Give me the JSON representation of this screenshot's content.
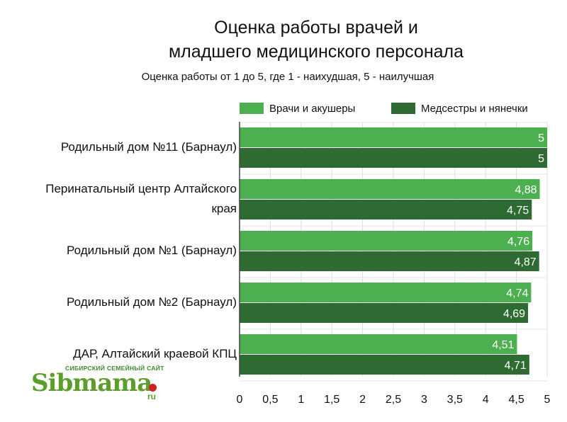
{
  "chart_data": {
    "type": "bar",
    "orientation": "horizontal",
    "title_lines": [
      "Оценка работы врачей и",
      "младшего медицинского персонала"
    ],
    "subtitle": "Оценка работы от 1 до 5, где 1 - наихудшая, 5 - наилучшая",
    "categories": [
      "Родильный дом №11 (Барнаул)",
      "Перинатальный центр Алтайского края",
      "Родильный дом №1 (Барнаул)",
      "Родильный дом №2 (Барнаул)",
      "ДАР, Алтайский краевой КПЦ"
    ],
    "category_lines": [
      [
        "Родильный дом №11 (Барнаул)"
      ],
      [
        "Перинатальный центр Алтайского",
        "края"
      ],
      [
        "Родильный дом №1 (Барнаул)"
      ],
      [
        "Родильный дом №2 (Барнаул)"
      ],
      [
        "ДАР, Алтайский краевой КПЦ"
      ]
    ],
    "series": [
      {
        "name": "Врачи и акушеры",
        "color": "#4caf50",
        "values": [
          5,
          4.88,
          4.76,
          4.74,
          4.51
        ],
        "labels": [
          "5",
          "4,88",
          "4,76",
          "4,74",
          "4,51"
        ]
      },
      {
        "name": "Медсестры и нянечки",
        "color": "#2e6b32",
        "values": [
          5,
          4.75,
          4.87,
          4.69,
          4.71
        ],
        "labels": [
          "5",
          "4,75",
          "4,87",
          "4,69",
          "4,71"
        ]
      }
    ],
    "xlim": [
      0,
      5
    ],
    "x_ticks": [
      "0",
      "0,5",
      "1",
      "1,5",
      "2",
      "2,5",
      "3",
      "3,5",
      "4",
      "4,5",
      "5"
    ],
    "grid": true,
    "legend_position": "top-right"
  },
  "logo": {
    "tagline": "СИБИРСКИЙ СЕМЕЙНЫЙ САЙТ",
    "name": "Sibmama",
    "suffix": "ru"
  }
}
